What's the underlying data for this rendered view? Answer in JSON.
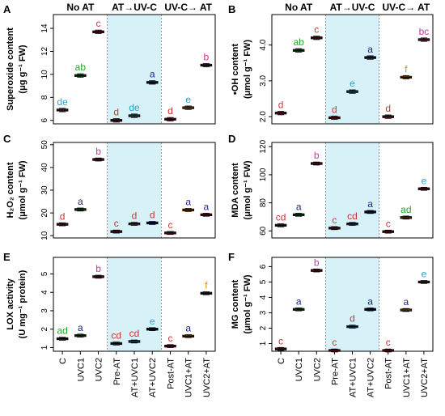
{
  "header": {
    "groups": [
      {
        "label": "No AT"
      },
      {
        "label": "AT→UV-C"
      },
      {
        "label": "UV-C→ AT"
      }
    ]
  },
  "x_categories": [
    "C",
    "UVC1",
    "UVC2",
    "Pre-AT",
    "AT+UVC1",
    "AT+UVC2",
    "Post-AT",
    "UVC1+AT",
    "UVC2+AT"
  ],
  "colors": {
    "highlight": "#d7f1f8",
    "a": "#1f1f8f",
    "b": "#cc3399",
    "c": "#cc3333",
    "d": "#cc3333",
    "e": "#22a7c8",
    "f": "#f08a00",
    "ab": "#2aa62a",
    "bc": "#cc3399",
    "cd": "#cc3333",
    "ad": "#2aa62a",
    "de": "#22a7c8",
    "box": [
      "#cc2233",
      "#22b022",
      "#cc2233",
      "#cc2233",
      "#22b0c8",
      "#1a1a9c",
      "#cc2233",
      "#f08a00",
      "#cc2277"
    ]
  },
  "chart_data": [
    {
      "panel": "A",
      "type": "box",
      "ylabel_lines": [
        "Superoxide content",
        "(μg g⁻¹ FW)"
      ],
      "ylim": [
        5.7,
        15.2
      ],
      "yticks": [
        6,
        8,
        10,
        12,
        14
      ],
      "ytick_labels": [
        "6",
        "8",
        "10",
        "12",
        "14"
      ],
      "values": [
        6.9,
        9.9,
        13.7,
        6.0,
        6.4,
        9.3,
        6.1,
        7.1,
        10.8
      ],
      "letters": [
        "de",
        "ab",
        "c",
        "d",
        "de",
        "a",
        "d",
        "e",
        "b"
      ]
    },
    {
      "panel": "B",
      "type": "box",
      "ylabel_lines": [
        "•OH content",
        "(μmol g⁻¹ FW)"
      ],
      "ylim": [
        1.8,
        4.85
      ],
      "yticks": [
        2.0,
        3.0,
        4.0
      ],
      "ytick_labels": [
        "2.0",
        "3.0",
        "4.0"
      ],
      "values": [
        2.1,
        3.85,
        4.2,
        1.97,
        2.7,
        3.65,
        2.0,
        3.1,
        4.15
      ],
      "letters": [
        "d",
        "ab",
        "c",
        "d",
        "e",
        "a",
        "d",
        "f",
        "bc"
      ]
    },
    {
      "panel": "C",
      "type": "box",
      "ylabel_lines": [
        "H₂O₂ content",
        "(μmol g⁻¹ FW)"
      ],
      "ylim": [
        9,
        51
      ],
      "yticks": [
        10,
        20,
        30,
        40,
        50
      ],
      "ytick_labels": [
        "10",
        "20",
        "30",
        "40",
        "50"
      ],
      "values": [
        15.0,
        21.5,
        43.5,
        11.8,
        15.2,
        15.6,
        11.2,
        21.3,
        19.2
      ],
      "letters": [
        "d",
        "a",
        "b",
        "c",
        "d",
        "d",
        "c",
        "a",
        "a"
      ]
    },
    {
      "panel": "D",
      "type": "box",
      "ylabel_lines": [
        "MDA content",
        "(μmol g⁻¹ FW)"
      ],
      "ylim": [
        55,
        123
      ],
      "yticks": [
        60,
        80,
        100,
        120
      ],
      "ytick_labels": [
        "60",
        "80",
        "100",
        "120"
      ],
      "values": [
        64.0,
        71.5,
        108.0,
        62.0,
        65.0,
        73.5,
        59.5,
        69.5,
        90.0
      ],
      "letters": [
        "cd",
        "a",
        "b",
        "c",
        "cd",
        "a",
        "c",
        "ad",
        "e"
      ]
    },
    {
      "panel": "E",
      "type": "box",
      "ylabel_lines": [
        "LOX activity",
        "(U mg⁻¹ protein)"
      ],
      "ylim": [
        0.8,
        5.9
      ],
      "yticks": [
        1,
        2,
        3,
        4,
        5
      ],
      "ytick_labels": [
        "1",
        "2",
        "3",
        "4",
        "5"
      ],
      "values": [
        1.48,
        1.65,
        4.85,
        1.22,
        1.33,
        2.0,
        1.08,
        1.62,
        3.95
      ],
      "letters": [
        "ad",
        "a",
        "b",
        "cd",
        "cd",
        "e",
        "c",
        "a",
        "f"
      ]
    },
    {
      "panel": "F",
      "type": "box",
      "ylabel_lines": [
        "MG content",
        "(μmol g⁻¹ FW)"
      ],
      "ylim": [
        0.5,
        6.6
      ],
      "yticks": [
        1,
        2,
        3,
        4,
        5,
        6
      ],
      "ytick_labels": [
        "1",
        "2",
        "3",
        "4",
        "5",
        "6"
      ],
      "values": [
        0.65,
        3.22,
        5.75,
        0.55,
        2.1,
        3.22,
        0.55,
        3.18,
        5.0
      ],
      "letters": [
        "c",
        "a",
        "b",
        "c",
        "d",
        "a",
        "c",
        "a",
        "e"
      ]
    }
  ]
}
